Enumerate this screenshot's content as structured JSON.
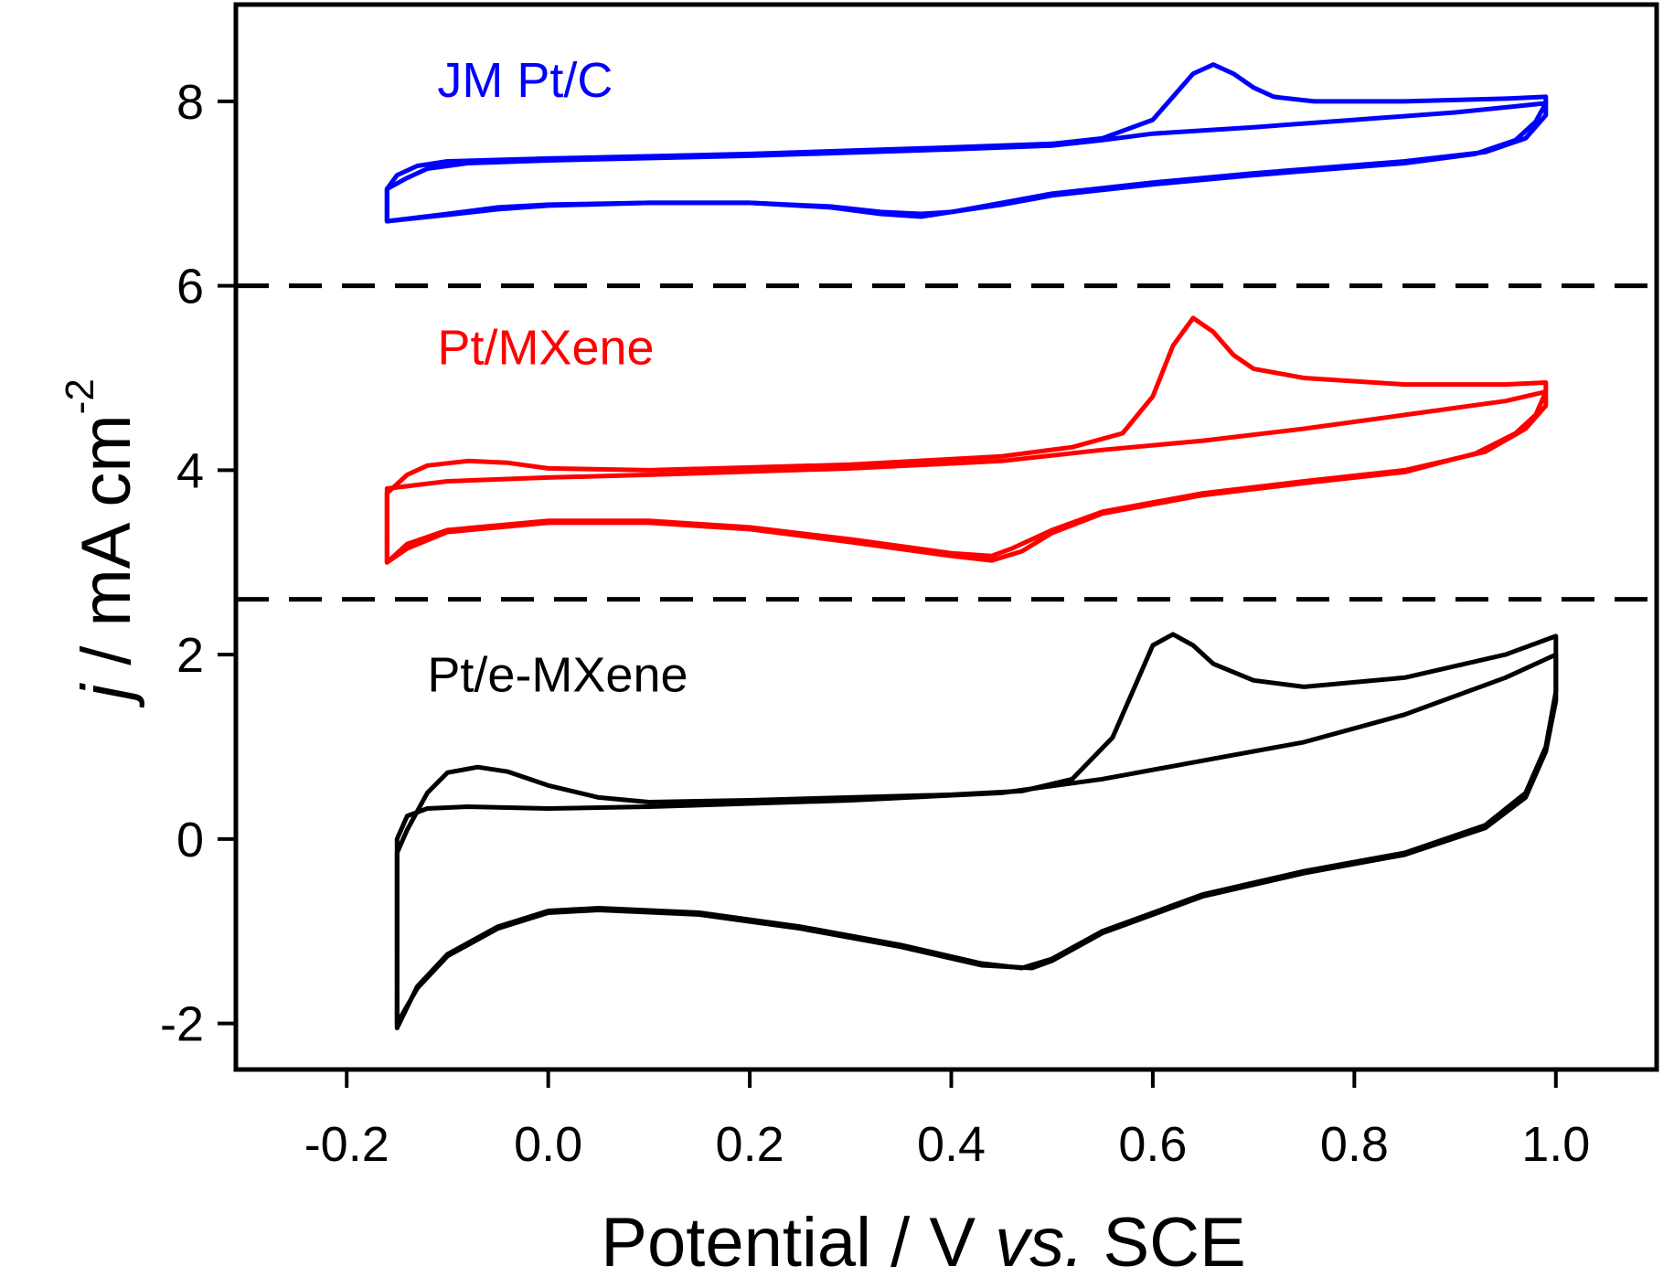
{
  "chart_data": {
    "type": "line",
    "title": "",
    "xlabel": {
      "prefix": "Potential / V ",
      "italic": "vs.",
      "suffix": " SCE"
    },
    "ylabel": {
      "italic": "j",
      "main": " / mA cm",
      "sup": "-2"
    },
    "xlim": [
      -0.31,
      1.1
    ],
    "ylim": [
      -2.5,
      9.05
    ],
    "xticks": [
      -0.2,
      0.0,
      0.2,
      0.4,
      0.6,
      0.8,
      1.0
    ],
    "xtick_labels": [
      "-0.2",
      "0.0",
      "0.2",
      "0.4",
      "0.6",
      "0.8",
      "1.0"
    ],
    "yticks": [
      -2,
      0,
      2,
      4,
      6,
      8
    ],
    "ytick_labels": [
      "-2",
      "0",
      "2",
      "4",
      "6",
      "8"
    ],
    "grid": false,
    "legend": "none",
    "separators": [
      6.0,
      2.6
    ],
    "series": [
      {
        "name": "JM Pt/C",
        "color": "#0000ff",
        "label_pos": [
          -0.11,
          8.05
        ],
        "cycles": [
          {
            "anodic": [
              [
                -0.16,
                7.05
              ],
              [
                -0.15,
                7.2
              ],
              [
                -0.13,
                7.3
              ],
              [
                -0.1,
                7.35
              ],
              [
                0.0,
                7.38
              ],
              [
                0.2,
                7.43
              ],
              [
                0.4,
                7.5
              ],
              [
                0.5,
                7.54
              ],
              [
                0.55,
                7.6
              ],
              [
                0.6,
                7.8
              ],
              [
                0.62,
                8.05
              ],
              [
                0.64,
                8.3
              ],
              [
                0.66,
                8.4
              ],
              [
                0.68,
                8.3
              ],
              [
                0.7,
                8.15
              ],
              [
                0.72,
                8.05
              ],
              [
                0.76,
                8.0
              ],
              [
                0.85,
                8.0
              ],
              [
                0.95,
                8.03
              ],
              [
                0.99,
                8.05
              ]
            ],
            "cathodic": [
              [
                0.99,
                8.05
              ],
              [
                0.99,
                7.85
              ],
              [
                0.97,
                7.6
              ],
              [
                0.93,
                7.45
              ],
              [
                0.85,
                7.35
              ],
              [
                0.7,
                7.22
              ],
              [
                0.6,
                7.12
              ],
              [
                0.5,
                7.0
              ],
              [
                0.45,
                6.9
              ],
              [
                0.4,
                6.8
              ],
              [
                0.37,
                6.75
              ],
              [
                0.33,
                6.78
              ],
              [
                0.28,
                6.85
              ],
              [
                0.2,
                6.9
              ],
              [
                0.1,
                6.9
              ],
              [
                0.0,
                6.88
              ],
              [
                -0.05,
                6.85
              ],
              [
                -0.1,
                6.78
              ],
              [
                -0.16,
                6.7
              ],
              [
                -0.16,
                7.05
              ]
            ]
          },
          {
            "anodic": [
              [
                -0.16,
                7.05
              ],
              [
                -0.14,
                7.17
              ],
              [
                -0.12,
                7.27
              ],
              [
                -0.08,
                7.33
              ],
              [
                0.0,
                7.36
              ],
              [
                0.2,
                7.41
              ],
              [
                0.4,
                7.48
              ],
              [
                0.5,
                7.52
              ],
              [
                0.55,
                7.58
              ],
              [
                0.6,
                7.65
              ],
              [
                0.7,
                7.72
              ],
              [
                0.8,
                7.8
              ],
              [
                0.9,
                7.88
              ],
              [
                0.99,
                7.98
              ]
            ],
            "cathodic": [
              [
                0.99,
                7.98
              ],
              [
                0.98,
                7.78
              ],
              [
                0.96,
                7.58
              ],
              [
                0.92,
                7.43
              ],
              [
                0.85,
                7.33
              ],
              [
                0.7,
                7.2
              ],
              [
                0.6,
                7.1
              ],
              [
                0.5,
                6.98
              ],
              [
                0.45,
                6.88
              ],
              [
                0.4,
                6.8
              ],
              [
                0.37,
                6.78
              ],
              [
                0.33,
                6.8
              ],
              [
                0.28,
                6.86
              ],
              [
                0.2,
                6.9
              ],
              [
                0.1,
                6.9
              ],
              [
                0.0,
                6.87
              ],
              [
                -0.05,
                6.83
              ],
              [
                -0.1,
                6.77
              ],
              [
                -0.16,
                6.7
              ],
              [
                -0.16,
                7.05
              ]
            ]
          }
        ]
      },
      {
        "name": "Pt/MXene",
        "color": "#ff0000",
        "label_pos": [
          -0.11,
          5.15
        ],
        "cycles": [
          {
            "anodic": [
              [
                -0.16,
                3.75
              ],
              [
                -0.14,
                3.95
              ],
              [
                -0.12,
                4.05
              ],
              [
                -0.08,
                4.1
              ],
              [
                -0.04,
                4.08
              ],
              [
                0.0,
                4.02
              ],
              [
                0.1,
                4.0
              ],
              [
                0.3,
                4.06
              ],
              [
                0.45,
                4.15
              ],
              [
                0.52,
                4.25
              ],
              [
                0.57,
                4.4
              ],
              [
                0.6,
                4.8
              ],
              [
                0.62,
                5.35
              ],
              [
                0.64,
                5.65
              ],
              [
                0.66,
                5.5
              ],
              [
                0.68,
                5.25
              ],
              [
                0.7,
                5.1
              ],
              [
                0.75,
                5.0
              ],
              [
                0.85,
                4.93
              ],
              [
                0.95,
                4.93
              ],
              [
                0.99,
                4.95
              ]
            ],
            "cathodic": [
              [
                0.99,
                4.95
              ],
              [
                0.99,
                4.7
              ],
              [
                0.97,
                4.45
              ],
              [
                0.93,
                4.2
              ],
              [
                0.85,
                4.0
              ],
              [
                0.75,
                3.88
              ],
              [
                0.65,
                3.75
              ],
              [
                0.55,
                3.55
              ],
              [
                0.5,
                3.35
              ],
              [
                0.46,
                3.15
              ],
              [
                0.44,
                3.07
              ],
              [
                0.4,
                3.1
              ],
              [
                0.3,
                3.25
              ],
              [
                0.2,
                3.38
              ],
              [
                0.1,
                3.45
              ],
              [
                0.0,
                3.45
              ],
              [
                -0.1,
                3.35
              ],
              [
                -0.14,
                3.2
              ],
              [
                -0.16,
                3.0
              ],
              [
                -0.16,
                3.75
              ]
            ]
          },
          {
            "anodic": [
              [
                -0.16,
                3.8
              ],
              [
                -0.1,
                3.88
              ],
              [
                0.0,
                3.92
              ],
              [
                0.1,
                3.95
              ],
              [
                0.3,
                4.02
              ],
              [
                0.45,
                4.1
              ],
              [
                0.55,
                4.22
              ],
              [
                0.65,
                4.32
              ],
              [
                0.75,
                4.45
              ],
              [
                0.85,
                4.6
              ],
              [
                0.95,
                4.75
              ],
              [
                0.99,
                4.85
              ]
            ],
            "cathodic": [
              [
                0.99,
                4.85
              ],
              [
                0.98,
                4.6
              ],
              [
                0.96,
                4.4
              ],
              [
                0.92,
                4.18
              ],
              [
                0.85,
                3.98
              ],
              [
                0.75,
                3.86
              ],
              [
                0.65,
                3.73
              ],
              [
                0.55,
                3.53
              ],
              [
                0.5,
                3.32
              ],
              [
                0.47,
                3.12
              ],
              [
                0.44,
                3.02
              ],
              [
                0.4,
                3.07
              ],
              [
                0.3,
                3.22
              ],
              [
                0.2,
                3.36
              ],
              [
                0.1,
                3.43
              ],
              [
                0.0,
                3.43
              ],
              [
                -0.1,
                3.33
              ],
              [
                -0.14,
                3.15
              ],
              [
                -0.16,
                3.0
              ],
              [
                -0.16,
                3.8
              ]
            ]
          }
        ]
      },
      {
        "name": "Pt/e-MXene",
        "color": "#000000",
        "label_pos": [
          -0.12,
          1.6
        ],
        "cycles": [
          {
            "anodic": [
              [
                -0.15,
                -0.15
              ],
              [
                -0.14,
                0.1
              ],
              [
                -0.12,
                0.5
              ],
              [
                -0.1,
                0.72
              ],
              [
                -0.07,
                0.78
              ],
              [
                -0.04,
                0.73
              ],
              [
                0.0,
                0.58
              ],
              [
                0.05,
                0.45
              ],
              [
                0.1,
                0.4
              ],
              [
                0.2,
                0.42
              ],
              [
                0.3,
                0.45
              ],
              [
                0.4,
                0.48
              ],
              [
                0.47,
                0.52
              ],
              [
                0.52,
                0.65
              ],
              [
                0.56,
                1.1
              ],
              [
                0.58,
                1.6
              ],
              [
                0.6,
                2.1
              ],
              [
                0.62,
                2.22
              ],
              [
                0.64,
                2.1
              ],
              [
                0.66,
                1.9
              ],
              [
                0.7,
                1.72
              ],
              [
                0.75,
                1.65
              ],
              [
                0.85,
                1.75
              ],
              [
                0.95,
                2.0
              ],
              [
                1.0,
                2.2
              ]
            ],
            "cathodic": [
              [
                1.0,
                2.2
              ],
              [
                1.0,
                1.6
              ],
              [
                0.99,
                1.0
              ],
              [
                0.97,
                0.5
              ],
              [
                0.93,
                0.15
              ],
              [
                0.85,
                -0.15
              ],
              [
                0.75,
                -0.35
              ],
              [
                0.65,
                -0.6
              ],
              [
                0.55,
                -1.0
              ],
              [
                0.5,
                -1.3
              ],
              [
                0.47,
                -1.4
              ],
              [
                0.43,
                -1.35
              ],
              [
                0.35,
                -1.15
              ],
              [
                0.25,
                -0.95
              ],
              [
                0.15,
                -0.8
              ],
              [
                0.05,
                -0.75
              ],
              [
                0.0,
                -0.78
              ],
              [
                -0.05,
                -0.95
              ],
              [
                -0.1,
                -1.25
              ],
              [
                -0.13,
                -1.6
              ],
              [
                -0.15,
                -2.05
              ],
              [
                -0.15,
                -0.15
              ]
            ]
          },
          {
            "anodic": [
              [
                -0.15,
                0.0
              ],
              [
                -0.14,
                0.25
              ],
              [
                -0.12,
                0.33
              ],
              [
                -0.08,
                0.35
              ],
              [
                0.0,
                0.33
              ],
              [
                0.1,
                0.35
              ],
              [
                0.3,
                0.42
              ],
              [
                0.45,
                0.5
              ],
              [
                0.55,
                0.65
              ],
              [
                0.65,
                0.85
              ],
              [
                0.75,
                1.05
              ],
              [
                0.85,
                1.35
              ],
              [
                0.95,
                1.75
              ],
              [
                1.0,
                2.0
              ]
            ],
            "cathodic": [
              [
                1.0,
                2.0
              ],
              [
                1.0,
                1.5
              ],
              [
                0.99,
                0.95
              ],
              [
                0.97,
                0.45
              ],
              [
                0.93,
                0.12
              ],
              [
                0.85,
                -0.17
              ],
              [
                0.75,
                -0.37
              ],
              [
                0.65,
                -0.62
              ],
              [
                0.55,
                -1.02
              ],
              [
                0.5,
                -1.32
              ],
              [
                0.48,
                -1.4
              ],
              [
                0.43,
                -1.37
              ],
              [
                0.35,
                -1.17
              ],
              [
                0.25,
                -0.97
              ],
              [
                0.15,
                -0.82
              ],
              [
                0.05,
                -0.77
              ],
              [
                0.0,
                -0.8
              ],
              [
                -0.05,
                -0.97
              ],
              [
                -0.1,
                -1.27
              ],
              [
                -0.13,
                -1.62
              ],
              [
                -0.15,
                -2.0
              ],
              [
                -0.15,
                0.0
              ]
            ]
          }
        ]
      }
    ]
  }
}
